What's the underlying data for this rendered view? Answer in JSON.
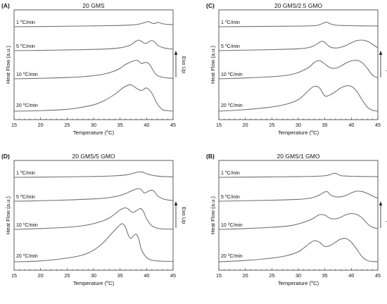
{
  "figure": {
    "panels": [
      {
        "letter": "(A)",
        "title": "20 GMS"
      },
      {
        "letter": "(C)",
        "title": "20 GMS/2.5 GMO"
      },
      {
        "letter": "(D)",
        "title": "20 GMS/5 GMO"
      },
      {
        "letter": "(B)",
        "title": "20 GMS/1 GMO"
      }
    ]
  },
  "chart_data": [
    {
      "type": "line",
      "panel": "(A)",
      "title": "20 GMS",
      "xlabel": "Temperature (°C)",
      "ylabel": "Heat Flow (a.u.)",
      "annotation": "Exo Up",
      "xlim": [
        15,
        45
      ],
      "xticks": [
        15,
        20,
        25,
        30,
        35,
        40,
        45
      ],
      "grid": false,
      "series": [
        {
          "name": "1 °C/min",
          "label": "1 °C/min",
          "x": [
            15,
            20,
            25,
            30,
            35,
            37,
            38,
            39,
            40,
            40.5,
            41,
            41.5,
            42,
            42.5,
            43,
            43.5,
            44,
            45
          ],
          "y": [
            0,
            0.02,
            0.05,
            0.08,
            0.12,
            0.16,
            0.2,
            0.3,
            0.45,
            0.48,
            0.34,
            0.3,
            0.4,
            0.38,
            0.28,
            0.25,
            0.22,
            0.2
          ]
        },
        {
          "name": "5 °C/min",
          "label": "5 °C/min",
          "x": [
            15,
            20,
            25,
            30,
            33,
            35,
            36,
            37,
            38,
            38.5,
            39,
            39.5,
            40,
            40.5,
            41,
            41.5,
            42,
            43,
            44,
            45
          ],
          "y": [
            0,
            0.03,
            0.07,
            0.12,
            0.18,
            0.27,
            0.38,
            0.55,
            0.9,
            1.0,
            0.9,
            0.72,
            0.7,
            0.88,
            0.95,
            0.85,
            0.55,
            0.3,
            0.2,
            0.15
          ]
        },
        {
          "name": "10 °C/min",
          "label": "10 °C/min",
          "x": [
            15,
            20,
            25,
            28,
            30,
            32,
            34,
            35,
            36,
            37,
            38,
            38.5,
            39,
            39.5,
            40,
            40.5,
            41,
            41.5,
            42,
            43,
            44,
            45
          ],
          "y": [
            0,
            0.05,
            0.12,
            0.2,
            0.3,
            0.45,
            0.75,
            1.0,
            1.35,
            1.6,
            1.75,
            1.68,
            1.45,
            1.52,
            1.55,
            1.4,
            1.0,
            0.6,
            0.32,
            0.15,
            0.08,
            0.05
          ]
        },
        {
          "name": "20 °C/min",
          "label": "20 °C/min",
          "x": [
            15,
            20,
            25,
            27,
            30,
            32,
            34,
            35,
            36,
            37,
            38,
            39,
            40,
            41,
            42,
            43,
            44,
            45
          ],
          "y": [
            0,
            0.05,
            0.18,
            0.3,
            0.6,
            1.0,
            1.6,
            2.0,
            2.35,
            2.5,
            2.2,
            1.95,
            2.2,
            1.7,
            0.7,
            0.15,
            0.05,
            0
          ]
        }
      ]
    },
    {
      "type": "line",
      "panel": "(C)",
      "title": "20 GMS/2.5 GMO",
      "xlabel": "Temperature (°C)",
      "ylabel": "Heat Flow (a.u.)",
      "annotation": "Exo Up",
      "xlim": [
        15,
        45
      ],
      "xticks": [
        15,
        20,
        25,
        30,
        35,
        40,
        45
      ],
      "grid": false,
      "series": [
        {
          "name": "1 °C/min",
          "label": "1 °C/min",
          "x": [
            15,
            20,
            25,
            30,
            33,
            34,
            35,
            35.5,
            36,
            37,
            38,
            40,
            42,
            45
          ],
          "y": [
            0,
            0.02,
            0.04,
            0.06,
            0.1,
            0.2,
            0.4,
            0.42,
            0.28,
            0.16,
            0.12,
            0.1,
            0.08,
            0.07
          ]
        },
        {
          "name": "5 °C/min",
          "label": "5 °C/min",
          "x": [
            15,
            20,
            25,
            30,
            32,
            33,
            34,
            34.5,
            35,
            36,
            37,
            38,
            39,
            40,
            41,
            42,
            43,
            44,
            45
          ],
          "y": [
            0,
            0.05,
            0.1,
            0.18,
            0.3,
            0.48,
            0.8,
            0.9,
            0.78,
            0.35,
            0.25,
            0.32,
            0.5,
            0.75,
            0.95,
            1.0,
            0.9,
            0.6,
            0.25
          ]
        },
        {
          "name": "10 °C/min",
          "label": "10 °C/min",
          "x": [
            15,
            20,
            25,
            28,
            30,
            32,
            33,
            34,
            35,
            36,
            37,
            38,
            39,
            40,
            41,
            42,
            43,
            44,
            45
          ],
          "y": [
            0,
            0.08,
            0.2,
            0.35,
            0.6,
            1.1,
            1.55,
            1.72,
            1.4,
            1.05,
            1.0,
            1.2,
            1.5,
            1.7,
            1.75,
            1.55,
            1.0,
            0.35,
            0.1
          ]
        },
        {
          "name": "20 °C/min",
          "label": "20 °C/min",
          "x": [
            15,
            20,
            25,
            28,
            30,
            31,
            32,
            33,
            34,
            35,
            36,
            37,
            38,
            39,
            40,
            41,
            42,
            43,
            44,
            45
          ],
          "y": [
            0,
            0.15,
            0.4,
            0.7,
            1.1,
            1.5,
            2.0,
            2.35,
            2.2,
            1.45,
            1.55,
            1.85,
            2.2,
            2.4,
            2.35,
            1.9,
            1.1,
            0.4,
            0.08,
            0
          ]
        }
      ]
    },
    {
      "type": "line",
      "panel": "(D)",
      "title": "20 GMS/5 GMO",
      "xlabel": "Temperature (°C)",
      "ylabel": "Heat Flow (a.u.)",
      "annotation": "Exo Up",
      "xlim": [
        15,
        45
      ],
      "xticks": [
        15,
        20,
        25,
        30,
        35,
        40,
        45
      ],
      "grid": false,
      "series": [
        {
          "name": "1 °C/min",
          "label": "1 °C/min",
          "x": [
            15,
            20,
            25,
            30,
            34,
            36,
            37,
            38,
            38.5,
            39,
            39.5,
            40,
            41,
            42,
            43,
            45
          ],
          "y": [
            0,
            0.02,
            0.05,
            0.08,
            0.14,
            0.22,
            0.32,
            0.45,
            0.5,
            0.52,
            0.45,
            0.33,
            0.2,
            0.12,
            0.08,
            0.05
          ]
        },
        {
          "name": "5 °C/min",
          "label": "5 °C/min",
          "x": [
            15,
            20,
            25,
            30,
            33,
            35,
            36,
            37,
            38,
            38.5,
            39,
            39.5,
            40,
            40.5,
            41,
            41.5,
            42,
            43,
            44,
            45
          ],
          "y": [
            0,
            0.05,
            0.12,
            0.22,
            0.35,
            0.55,
            0.72,
            0.95,
            1.15,
            1.2,
            1.1,
            0.8,
            0.85,
            1.0,
            1.05,
            0.9,
            0.55,
            0.25,
            0.12,
            0.08
          ]
        },
        {
          "name": "10 °C/min",
          "label": "10 °C/min",
          "x": [
            15,
            20,
            25,
            28,
            30,
            32,
            33,
            34,
            35,
            35.5,
            36,
            36.5,
            37,
            37.5,
            38,
            38.5,
            39,
            39.5,
            40,
            41,
            42,
            43,
            45
          ],
          "y": [
            0,
            0.08,
            0.2,
            0.35,
            0.55,
            0.85,
            1.1,
            1.45,
            1.85,
            1.98,
            2.05,
            1.95,
            1.72,
            1.6,
            1.75,
            1.92,
            1.95,
            1.6,
            1.0,
            0.35,
            0.12,
            0.05,
            0.02
          ]
        },
        {
          "name": "20 °C/min",
          "label": "20 °C/min",
          "x": [
            15,
            20,
            25,
            28,
            30,
            31,
            32,
            33,
            34,
            35,
            35.5,
            36,
            36.5,
            37,
            37.5,
            38,
            38.5,
            39,
            40,
            41,
            42,
            43,
            45
          ],
          "y": [
            0,
            0.08,
            0.35,
            0.65,
            1.1,
            1.45,
            1.9,
            2.45,
            3.0,
            3.5,
            3.6,
            3.3,
            2.6,
            2.2,
            2.45,
            2.6,
            2.2,
            1.2,
            0.4,
            0.15,
            0.08,
            0.05,
            0.04
          ]
        }
      ]
    },
    {
      "type": "line",
      "panel": "(B)",
      "title": "20 GMS/1 GMO",
      "xlabel": "Temperature (°C)",
      "ylabel": "Heat Flow (a.u.)",
      "annotation": "Exo Up",
      "xlim": [
        15,
        45
      ],
      "xticks": [
        15,
        20,
        25,
        30,
        35,
        40,
        45
      ],
      "grid": false,
      "series": [
        {
          "name": "1 °C/min",
          "label": "1 °C/min",
          "x": [
            15,
            20,
            25,
            30,
            33,
            35,
            36,
            36.5,
            37,
            37.5,
            38,
            39,
            40,
            42,
            45
          ],
          "y": [
            0,
            0.02,
            0.04,
            0.07,
            0.1,
            0.15,
            0.25,
            0.36,
            0.38,
            0.28,
            0.16,
            0.12,
            0.1,
            0.08,
            0.07
          ]
        },
        {
          "name": "5 °C/min",
          "label": "5 °C/min",
          "x": [
            15,
            20,
            25,
            30,
            32,
            33,
            34,
            35,
            35.5,
            36,
            37,
            38,
            39,
            40,
            41,
            42,
            43,
            44,
            45
          ],
          "y": [
            0,
            0.05,
            0.1,
            0.18,
            0.28,
            0.4,
            0.6,
            0.88,
            0.9,
            0.62,
            0.42,
            0.42,
            0.55,
            0.8,
            0.95,
            0.92,
            0.75,
            0.5,
            0.28
          ]
        },
        {
          "name": "10 °C/min",
          "label": "10 °C/min",
          "x": [
            15,
            20,
            25,
            28,
            30,
            32,
            33,
            34,
            35,
            36,
            37,
            38,
            39,
            40,
            41,
            42,
            43,
            44,
            45
          ],
          "y": [
            0,
            0.08,
            0.2,
            0.32,
            0.52,
            0.85,
            1.1,
            1.4,
            1.35,
            1.05,
            1.0,
            1.15,
            1.4,
            1.5,
            1.42,
            1.1,
            0.55,
            0.2,
            0.08
          ]
        },
        {
          "name": "20 °C/min",
          "label": "20 °C/min",
          "x": [
            15,
            20,
            25,
            28,
            30,
            31,
            32,
            33,
            34,
            35,
            36,
            37,
            38,
            39,
            40,
            41,
            42,
            43,
            44,
            45
          ],
          "y": [
            0,
            0.12,
            0.35,
            0.6,
            0.95,
            1.3,
            1.7,
            2.0,
            1.85,
            1.45,
            1.55,
            1.85,
            2.15,
            2.2,
            1.85,
            1.2,
            0.5,
            0.12,
            0.03,
            0
          ]
        }
      ]
    }
  ]
}
